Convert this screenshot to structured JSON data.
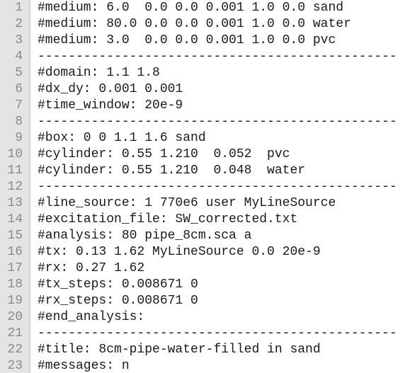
{
  "editor": {
    "lines": [
      {
        "num": "1",
        "text": "#medium: 6.0  0.0 0.0 0.001 1.0 0.0 sand"
      },
      {
        "num": "2",
        "text": "#medium: 80.0 0.0 0.0 0.001 1.0 0.0 water"
      },
      {
        "num": "3",
        "text": "#medium: 3.0  0.0 0.0 0.001 1.0 0.0 pvc"
      },
      {
        "num": "4",
        "text": "-----------------------------------------------"
      },
      {
        "num": "5",
        "text": "#domain: 1.1 1.8"
      },
      {
        "num": "6",
        "text": "#dx_dy: 0.001 0.001"
      },
      {
        "num": "7",
        "text": "#time_window: 20e-9"
      },
      {
        "num": "8",
        "text": "-----------------------------------------------"
      },
      {
        "num": "9",
        "text": "#box: 0 0 1.1 1.6 sand"
      },
      {
        "num": "10",
        "text": "#cylinder: 0.55 1.210  0.052  pvc"
      },
      {
        "num": "11",
        "text": "#cylinder: 0.55 1.210  0.048  water"
      },
      {
        "num": "12",
        "text": "-----------------------------------------------"
      },
      {
        "num": "13",
        "text": "#line_source: 1 770e6 user MyLineSource"
      },
      {
        "num": "14",
        "text": "#excitation_file: SW_corrected.txt"
      },
      {
        "num": "15",
        "text": "#analysis: 80 pipe_8cm.sca a"
      },
      {
        "num": "16",
        "text": "#tx: 0.13 1.62 MyLineSource 0.0 20e-9"
      },
      {
        "num": "17",
        "text": "#rx: 0.27 1.62"
      },
      {
        "num": "18",
        "text": "#tx_steps: 0.008671 0"
      },
      {
        "num": "19",
        "text": "#rx_steps: 0.008671 0"
      },
      {
        "num": "20",
        "text": "#end_analysis:"
      },
      {
        "num": "21",
        "text": "-----------------------------------------------"
      },
      {
        "num": "22",
        "text": "#title: 8cm-pipe-water-filled in sand"
      },
      {
        "num": "23",
        "text": "#messages: n"
      }
    ]
  }
}
